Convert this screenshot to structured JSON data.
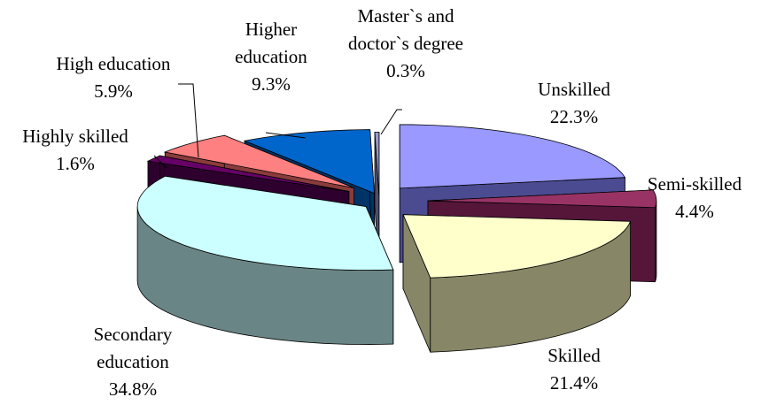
{
  "chart_data": {
    "type": "pie",
    "title": "",
    "style": "3d-exploded",
    "slices": [
      {
        "label": "Unskilled",
        "value": 22.3,
        "value_label": "22.3%",
        "color": "#9999ff",
        "dark": "#4b4b91"
      },
      {
        "label": "Semi-skilled",
        "value": 4.4,
        "value_label": "4.4%",
        "color": "#993366",
        "dark": "#55163a"
      },
      {
        "label": "Skilled",
        "value": 21.4,
        "value_label": "21.4%",
        "color": "#ffffcc",
        "dark": "#878768"
      },
      {
        "label": "Secondary education",
        "label_lines": [
          "Secondary",
          "education"
        ],
        "value": 34.8,
        "value_label": "34.8%",
        "color": "#ccffff",
        "dark": "#6a8585"
      },
      {
        "label": "Highly skilled",
        "value": 1.6,
        "value_label": "1.6%",
        "color": "#660066",
        "dark": "#2e002e"
      },
      {
        "label": "High education",
        "value": 5.9,
        "value_label": "5.9%",
        "color": "#ff8080",
        "dark": "#8a3b3b"
      },
      {
        "label": "Higher education",
        "label_lines": [
          "Higher",
          "education"
        ],
        "value": 9.3,
        "value_label": "9.3%",
        "color": "#0066cc",
        "dark": "#003366"
      },
      {
        "label": "Master`s and doctor`s degree",
        "label_lines": [
          "Master`s and",
          "doctor`s  degree"
        ],
        "value": 0.3,
        "value_label": "0.3%",
        "color": "#9999cc",
        "dark": "#4d4d6b"
      }
    ]
  }
}
